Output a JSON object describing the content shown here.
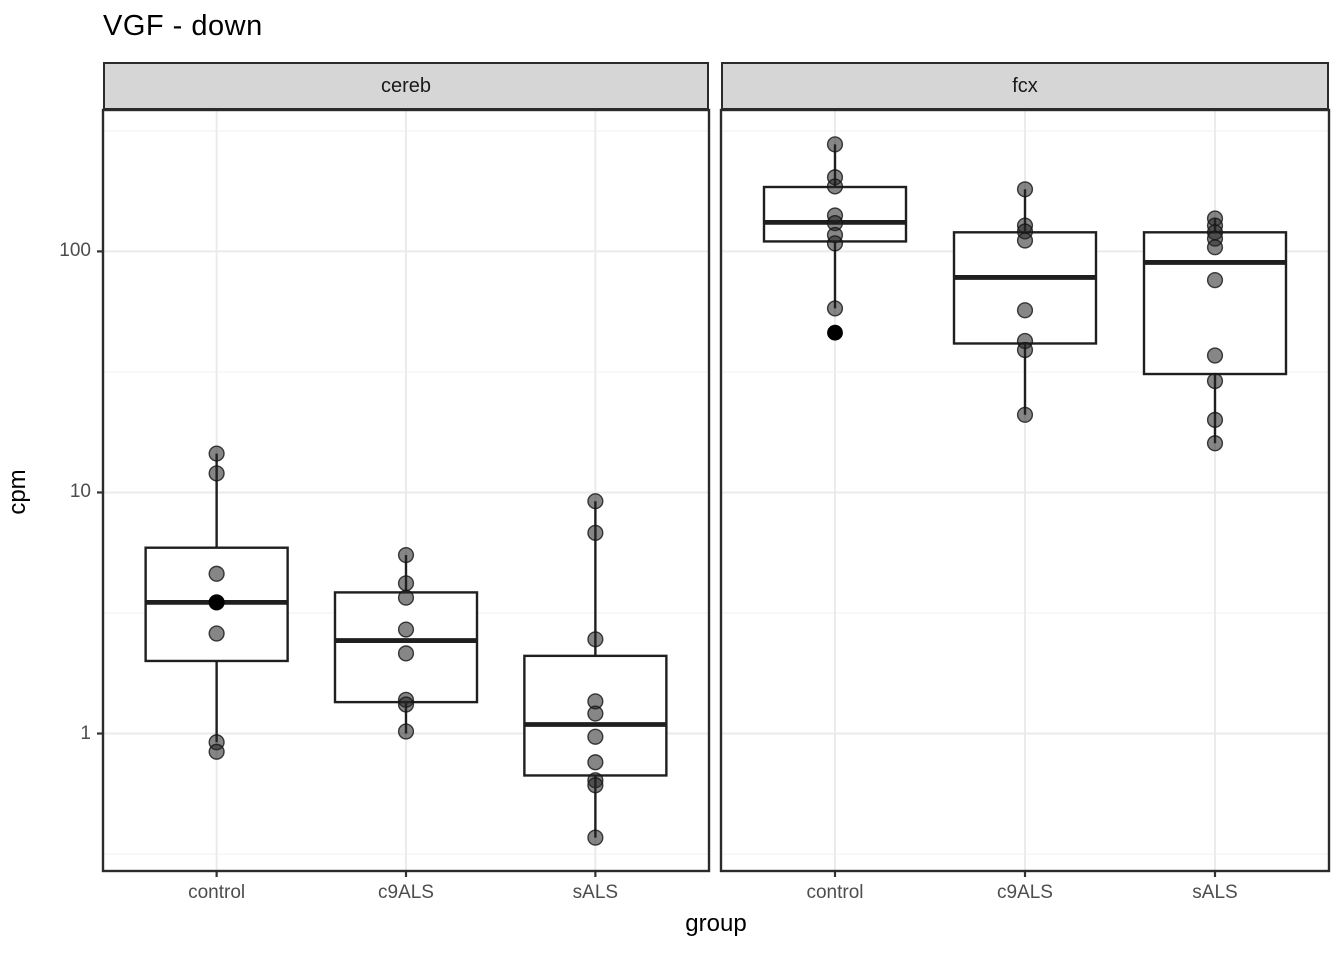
{
  "title": "VGF - down",
  "axes": {
    "x_title": "group",
    "y_title": "cpm",
    "y_tick_labels": [
      "100",
      "10",
      "1"
    ]
  },
  "colors": {
    "strip_fill": "#d6d6d6",
    "panel_border": "#2b2b2b",
    "grid_major": "#ebebeb",
    "grid_minor": "#f4f4f4",
    "box_stroke": "#1f1f1f",
    "point_fill": "#232323",
    "tick_text": "#4d4d4d"
  },
  "chart_data": {
    "type": "boxplot",
    "title": "VGF - down",
    "xlabel": "group",
    "ylabel": "cpm",
    "log_y": true,
    "ylim": [
      0.269,
      386
    ],
    "y_major_ticks": [
      1,
      10,
      100
    ],
    "y_minor_ticks": [
      0.316,
      3.16,
      31.6,
      316
    ],
    "grid": true,
    "legend": false,
    "categories": [
      "control",
      "c9ALS",
      "sALS"
    ],
    "facets": [
      {
        "label": "cereb",
        "groups": [
          {
            "category": "control",
            "box": {
              "q1": 2.0,
              "median": 3.5,
              "q3": 5.9,
              "whisker_low": 0.92,
              "whisker_high": 14.5
            },
            "points": [
              14.5,
              12.0,
              4.6,
              3.5,
              2.6,
              0.92,
              0.84
            ],
            "solid_points": [
              3.5
            ]
          },
          {
            "category": "c9ALS",
            "box": {
              "q1": 1.35,
              "median": 2.43,
              "q3": 3.85,
              "whisker_low": 1.0,
              "whisker_high": 5.5
            },
            "points": [
              5.5,
              4.2,
              3.66,
              2.7,
              2.15,
              1.38,
              1.32,
              1.02
            ],
            "solid_points": []
          },
          {
            "category": "sALS",
            "box": {
              "q1": 0.67,
              "median": 1.09,
              "q3": 2.1,
              "whisker_low": 0.37,
              "whisker_high": 9.2
            },
            "points": [
              9.2,
              6.8,
              2.46,
              1.36,
              1.21,
              0.97,
              0.76,
              0.64,
              0.61,
              0.37
            ],
            "solid_points": []
          }
        ]
      },
      {
        "label": "fcx",
        "groups": [
          {
            "category": "control",
            "box": {
              "q1": 110,
              "median": 132,
              "q3": 185,
              "whisker_low": 58,
              "whisker_high": 278
            },
            "points": [
              278,
              203,
              186,
              141,
              131,
              117,
              108,
              58
            ],
            "solid_points": [
              46
            ]
          },
          {
            "category": "c9ALS",
            "box": {
              "q1": 41.5,
              "median": 78,
              "q3": 120,
              "whisker_low": 21,
              "whisker_high": 181
            },
            "points": [
              181,
              128,
              121,
              111,
              57,
              42.5,
              39,
              21
            ],
            "solid_points": []
          },
          {
            "category": "sALS",
            "box": {
              "q1": 31,
              "median": 90,
              "q3": 120,
              "whisker_low": 16,
              "whisker_high": 137
            },
            "points": [
              137,
              128,
              120,
              113,
              104,
              76,
              37,
              29,
              20,
              16
            ],
            "solid_points": []
          }
        ]
      }
    ]
  }
}
